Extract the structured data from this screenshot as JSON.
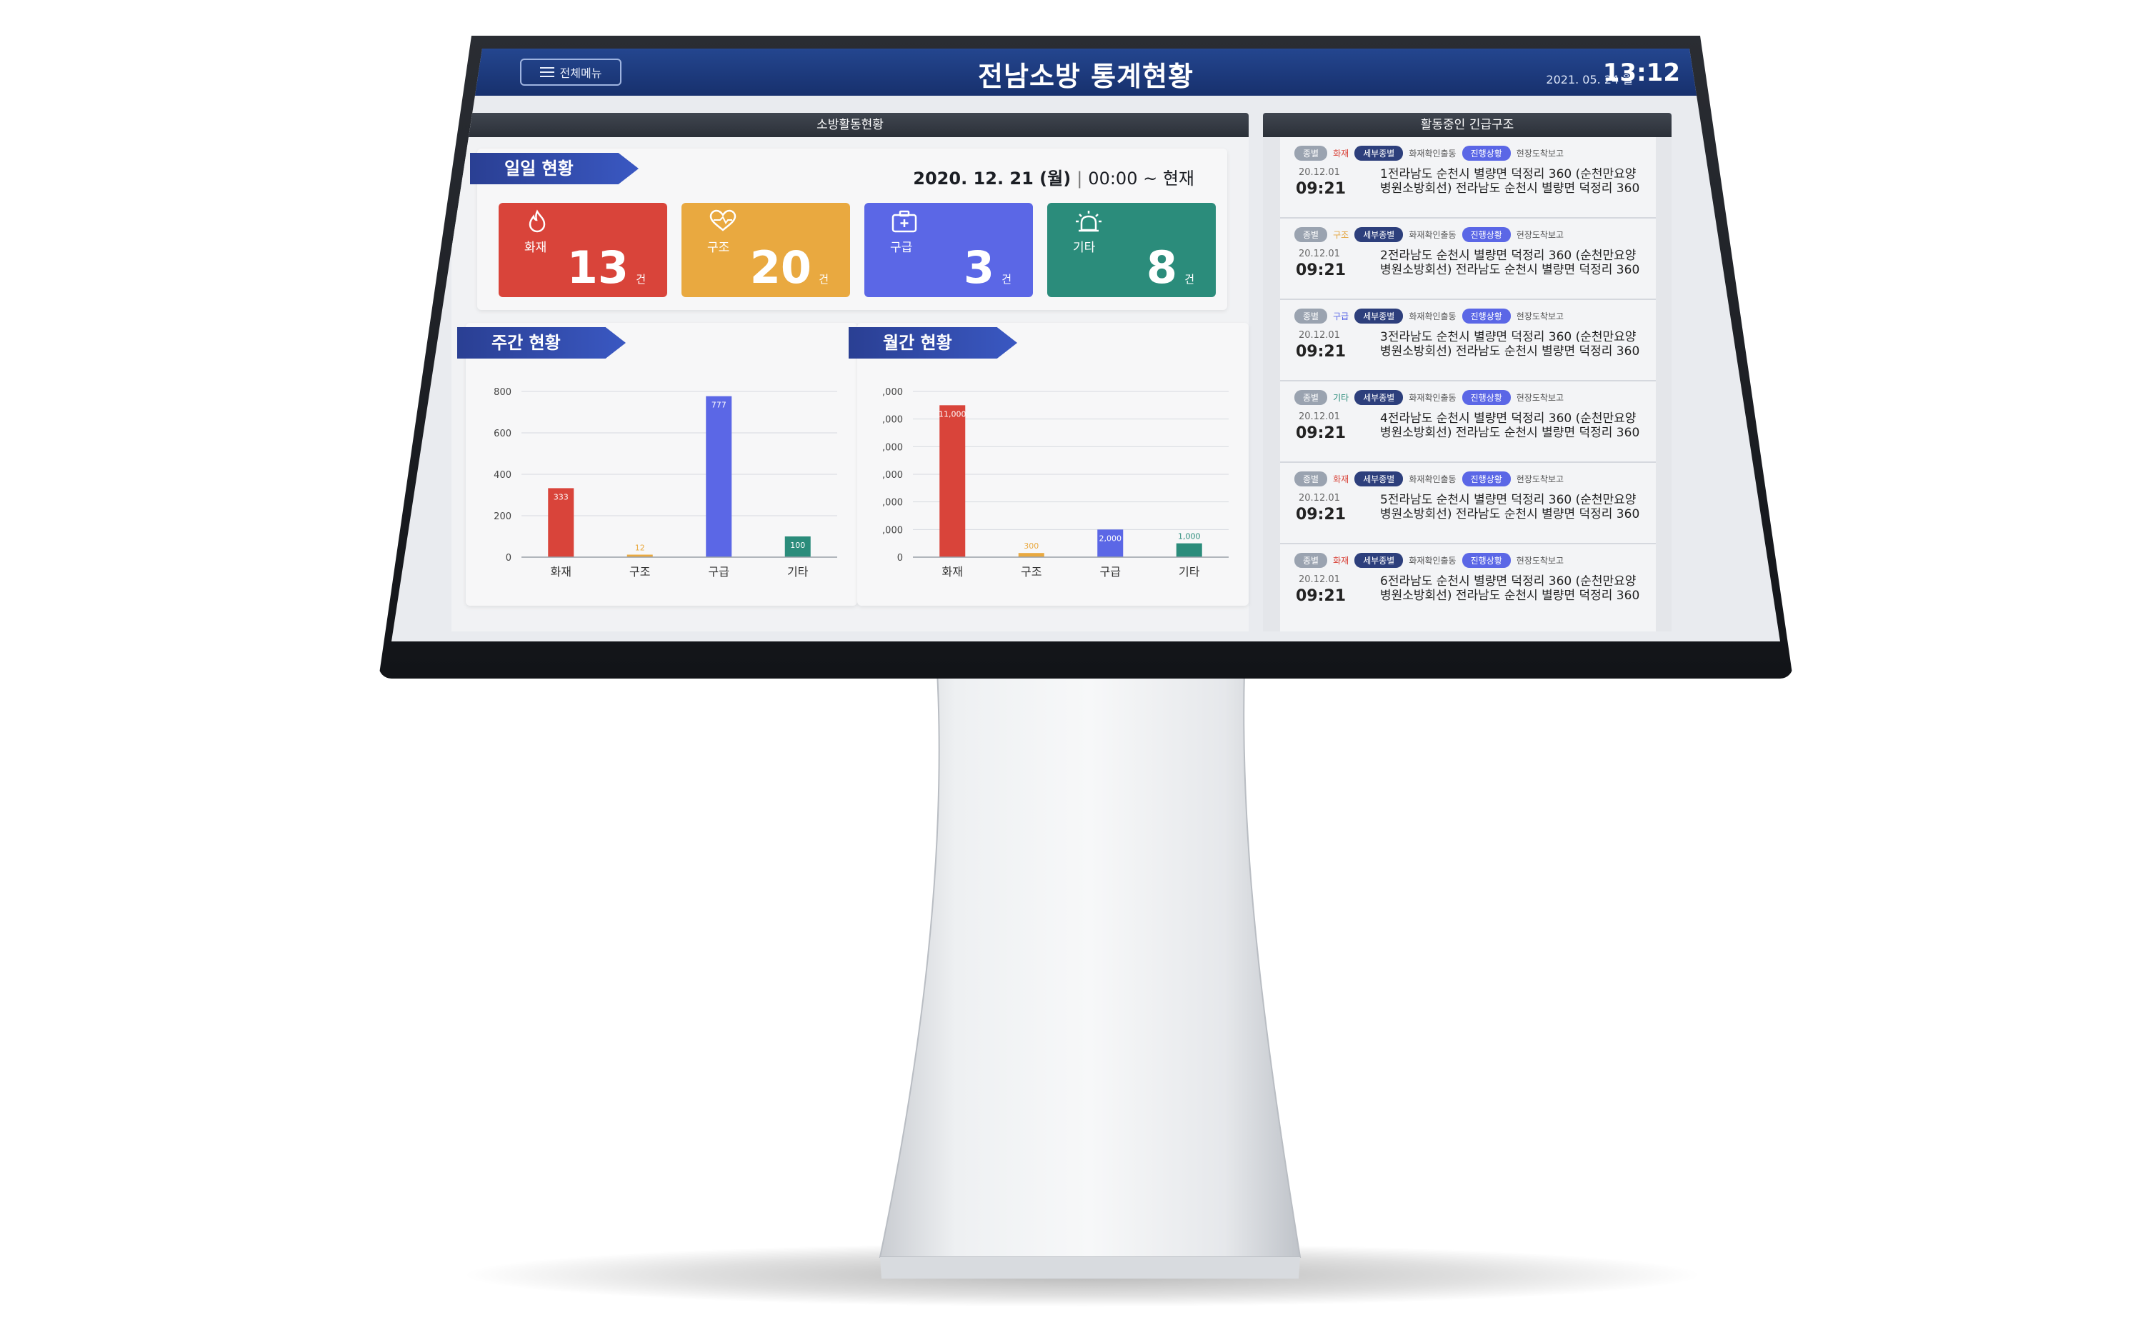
{
  "header": {
    "menu_label": "전체메뉴",
    "title": "전남소방 통계현황",
    "date": "2021. 05. 24 월",
    "time": "13:12"
  },
  "left": {
    "panel_title": "소방활동현황",
    "daily": {
      "title": "일일 현황",
      "date": "2020. 12. 21 (월)",
      "separator": "|",
      "range": "00:00 ~ 현재",
      "cards": [
        {
          "label": "화재",
          "value": "13",
          "unit": "건",
          "icon": "flame-icon",
          "color": "#d9443a"
        },
        {
          "label": "구조",
          "value": "20",
          "unit": "건",
          "icon": "heart-hand-icon",
          "color": "#e9a940"
        },
        {
          "label": "구급",
          "value": "3",
          "unit": "건",
          "icon": "medical-kit-icon",
          "color": "#5b67e6"
        },
        {
          "label": "기타",
          "value": "8",
          "unit": "건",
          "icon": "siren-icon",
          "color": "#2b8c7b"
        }
      ]
    },
    "weekly_title": "주간 현황",
    "monthly_title": "월간 현황"
  },
  "chart_data": [
    {
      "type": "bar",
      "title": "주간 현황",
      "categories": [
        "화재",
        "구조",
        "구급",
        "기타"
      ],
      "values": [
        333,
        12,
        777,
        100
      ],
      "value_labels": [
        "333",
        "12",
        "777",
        "100"
      ],
      "colors": [
        "#d9443a",
        "#e9a940",
        "#5b67e6",
        "#2b8c7b"
      ],
      "ylim": [
        0,
        800
      ],
      "yticks": [
        "0",
        "200",
        "400",
        "600",
        "800"
      ],
      "grid": true
    },
    {
      "type": "bar",
      "title": "월간 현황",
      "categories": [
        "화재",
        "구조",
        "구급",
        "기타"
      ],
      "values": [
        11000,
        300,
        2000,
        1000
      ],
      "value_labels": [
        "11,000",
        "300",
        "2,000",
        "1,000"
      ],
      "colors": [
        "#d9443a",
        "#e9a940",
        "#5b67e6",
        "#2b8c7b"
      ],
      "ylim": [
        0,
        12000
      ],
      "yticks": [
        "0",
        ",000",
        ",000",
        ",000",
        ",000",
        ",000",
        ",000"
      ],
      "grid": true
    }
  ],
  "right": {
    "panel_title": "활동중인 긴급구조",
    "tag_kind": "종별",
    "tag_detail": "세부종별",
    "tag_status": "진행상황",
    "items": [
      {
        "kind": "화재",
        "kind_class": "kind-fire",
        "detail": "화재확인출동",
        "status": "현장도착보고",
        "date": "20.12.01",
        "time": "09:21",
        "address": "1전라남도 순천시 별량면 덕정리 360 (순천만요양병원소방회선) 전라남도 순천시 별량면 덕정리 360"
      },
      {
        "kind": "구조",
        "kind_class": "kind-rescue",
        "detail": "화재확인출동",
        "status": "현장도착보고",
        "date": "20.12.01",
        "time": "09:21",
        "address": "2전라남도 순천시 별량면 덕정리 360 (순천만요양병원소방회선) 전라남도 순천시 별량면 덕정리 360"
      },
      {
        "kind": "구급",
        "kind_class": "kind-first",
        "detail": "화재확인출동",
        "status": "현장도착보고",
        "date": "20.12.01",
        "time": "09:21",
        "address": "3전라남도 순천시 별량면 덕정리 360 (순천만요양병원소방회선) 전라남도 순천시 별량면 덕정리 360"
      },
      {
        "kind": "기타",
        "kind_class": "kind-etc",
        "detail": "화재확인출동",
        "status": "현장도착보고",
        "date": "20.12.01",
        "time": "09:21",
        "address": "4전라남도 순천시 별량면 덕정리 360 (순천만요양병원소방회선) 전라남도 순천시 별량면 덕정리 360"
      },
      {
        "kind": "화재",
        "kind_class": "kind-fire",
        "detail": "화재확인출동",
        "status": "현장도착보고",
        "date": "20.12.01",
        "time": "09:21",
        "address": "5전라남도 순천시 별량면 덕정리 360 (순천만요양병원소방회선) 전라남도 순천시 별량면 덕정리 360"
      },
      {
        "kind": "화재",
        "kind_class": "kind-fire",
        "detail": "화재확인출동",
        "status": "현장도착보고",
        "date": "20.12.01",
        "time": "09:21",
        "address": "6전라남도 순천시 별량면 덕정리 360 (순천만요양병원소방회선) 전라남도 순천시 별량면 덕정리 360"
      }
    ]
  }
}
